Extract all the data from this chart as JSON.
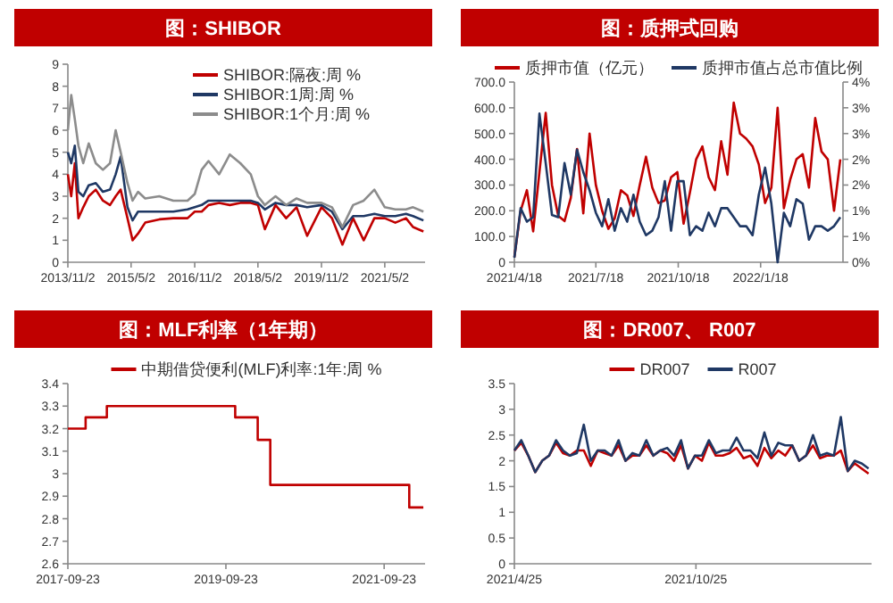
{
  "chart_data": [
    {
      "type": "line",
      "title": "图：SHIBOR",
      "legend": "top",
      "xlim": [
        "2013-11-02",
        "2022-04-15"
      ],
      "ylim": [
        0,
        9
      ],
      "yticks": [
        0,
        1,
        2,
        3,
        4,
        5,
        6,
        7,
        8,
        9
      ],
      "xticks": [
        {
          "value": "2013-11-02",
          "label": "2013/11/2"
        },
        {
          "value": "2015-05-02",
          "label": "2015/5/2"
        },
        {
          "value": "2016-11-02",
          "label": "2016/11/2"
        },
        {
          "value": "2018-05-02",
          "label": "2018/5/2"
        },
        {
          "value": "2019-11-02",
          "label": "2019/11/2"
        },
        {
          "value": "2021-05-02",
          "label": "2021/5/2"
        }
      ],
      "x": [
        "2013-11-02",
        "2013-12-01",
        "2014-01-01",
        "2014-02-01",
        "2014-03-15",
        "2014-05-01",
        "2014-07-01",
        "2014-09-01",
        "2014-11-01",
        "2014-12-20",
        "2015-02-01",
        "2015-04-01",
        "2015-05-15",
        "2015-07-01",
        "2015-09-01",
        "2016-01-01",
        "2016-05-01",
        "2016-09-01",
        "2016-11-02",
        "2017-01-01",
        "2017-03-01",
        "2017-06-01",
        "2017-09-01",
        "2017-12-01",
        "2018-03-01",
        "2018-05-02",
        "2018-07-01",
        "2018-10-01",
        "2019-01-01",
        "2019-04-01",
        "2019-07-01",
        "2019-11-02",
        "2020-02-01",
        "2020-05-01",
        "2020-08-01",
        "2020-11-01",
        "2021-02-01",
        "2021-05-02",
        "2021-08-01",
        "2021-11-01",
        "2022-01-01",
        "2022-04-01"
      ],
      "series": [
        {
          "name": "SHIBOR:隔夜:周  %",
          "color": "#c00000",
          "values": [
            4.0,
            3.0,
            4.5,
            2.0,
            2.5,
            3.0,
            3.3,
            2.8,
            2.6,
            3.0,
            3.3,
            2.0,
            1.0,
            1.3,
            1.8,
            1.95,
            2.0,
            2.0,
            2.3,
            2.3,
            2.6,
            2.7,
            2.6,
            2.7,
            2.7,
            2.6,
            1.5,
            2.6,
            2.0,
            2.5,
            1.2,
            2.5,
            2.0,
            0.8,
            2.0,
            1.0,
            2.0,
            2.0,
            1.8,
            2.0,
            1.6,
            1.4
          ]
        },
        {
          "name": "SHIBOR:1周:周  %",
          "color": "#1f3864",
          "values": [
            5.0,
            4.5,
            5.3,
            3.2,
            3.0,
            3.5,
            3.6,
            3.2,
            3.3,
            4.0,
            4.8,
            2.5,
            1.9,
            2.3,
            2.3,
            2.3,
            2.3,
            2.4,
            2.5,
            2.6,
            2.8,
            2.8,
            2.8,
            2.8,
            2.8,
            2.7,
            2.4,
            2.7,
            2.6,
            2.6,
            2.5,
            2.6,
            2.3,
            1.5,
            2.1,
            2.1,
            2.2,
            2.1,
            2.1,
            2.2,
            2.1,
            1.9
          ]
        },
        {
          "name": "SHIBOR:1个月:周  %",
          "color": "#8c8c8c",
          "values": [
            6.0,
            7.6,
            6.5,
            5.3,
            4.5,
            5.4,
            4.5,
            4.2,
            4.5,
            6.0,
            5.0,
            3.6,
            2.8,
            3.2,
            2.9,
            3.0,
            2.8,
            2.8,
            3.1,
            4.2,
            4.6,
            4.0,
            4.9,
            4.5,
            4.0,
            3.0,
            2.6,
            3.0,
            2.6,
            2.9,
            2.7,
            2.7,
            2.5,
            1.6,
            2.6,
            2.8,
            3.3,
            2.5,
            2.4,
            2.4,
            2.5,
            2.3
          ]
        }
      ]
    },
    {
      "type": "line",
      "title": "图：质押式回购",
      "legend": "top",
      "xlim": [
        "2021-04-18",
        "2022-04-20"
      ],
      "ylim": [
        0,
        700
      ],
      "y2lim": [
        0,
        4
      ],
      "yticks": [
        0,
        {
          "value": 100,
          "label": "100.0"
        },
        {
          "value": 200,
          "label": "200.0"
        },
        {
          "value": 300,
          "label": "300.0"
        },
        {
          "value": 400,
          "label": "400.0"
        },
        {
          "value": 500,
          "label": "500.0"
        },
        {
          "value": 600,
          "label": "600.0"
        },
        {
          "value": 700,
          "label": "700.0"
        }
      ],
      "y2ticks": [
        {
          "value": 0,
          "label": "0%"
        },
        {
          "value": 0.571,
          "label": "1%"
        },
        {
          "value": 1.143,
          "label": "1%"
        },
        {
          "value": 1.714,
          "label": "2%"
        },
        {
          "value": 2.286,
          "label": "2%"
        },
        {
          "value": 2.857,
          "label": "3%"
        },
        {
          "value": 3.429,
          "label": "3%"
        },
        {
          "value": 4,
          "label": "4%"
        }
      ],
      "xticks": [
        {
          "value": "2021-04-18",
          "label": "2021/4/18"
        },
        {
          "value": "2021-07-18",
          "label": "2021/7/18"
        },
        {
          "value": "2021-10-18",
          "label": "2021/10/18"
        },
        {
          "value": "2022-01-18",
          "label": "2022/1/18"
        }
      ],
      "x": [
        "2021-04-18",
        "2021-04-25",
        "2021-05-02",
        "2021-05-09",
        "2021-05-16",
        "2021-05-23",
        "2021-05-30",
        "2021-06-06",
        "2021-06-13",
        "2021-06-20",
        "2021-06-27",
        "2021-07-04",
        "2021-07-11",
        "2021-07-18",
        "2021-07-25",
        "2021-08-01",
        "2021-08-08",
        "2021-08-15",
        "2021-08-22",
        "2021-08-29",
        "2021-09-05",
        "2021-09-12",
        "2021-09-19",
        "2021-09-26",
        "2021-10-03",
        "2021-10-10",
        "2021-10-17",
        "2021-10-24",
        "2021-10-31",
        "2021-11-07",
        "2021-11-14",
        "2021-11-21",
        "2021-11-28",
        "2021-12-05",
        "2021-12-12",
        "2021-12-19",
        "2021-12-26",
        "2022-01-02",
        "2022-01-09",
        "2022-01-16",
        "2022-01-23",
        "2022-01-30",
        "2022-02-06",
        "2022-02-13",
        "2022-02-20",
        "2022-02-27",
        "2022-03-06",
        "2022-03-13",
        "2022-03-20",
        "2022-03-27",
        "2022-04-03",
        "2022-04-10",
        "2022-04-17"
      ],
      "series": [
        {
          "name": "质押市值（亿元）",
          "color": "#c00000",
          "values": [
            20,
            200,
            280,
            120,
            350,
            580,
            300,
            180,
            160,
            250,
            440,
            190,
            500,
            300,
            200,
            130,
            170,
            280,
            260,
            180,
            300,
            410,
            290,
            230,
            240,
            330,
            350,
            150,
            270,
            400,
            450,
            330,
            280,
            470,
            340,
            620,
            500,
            480,
            450,
            380,
            230,
            290,
            600,
            210,
            320,
            400,
            420,
            290,
            560,
            430,
            400,
            200,
            400
          ]
        },
        {
          "name": "质押市值占总市值比例",
          "color": "#1f3864",
          "axis": "y2",
          "values": [
            0.1,
            1.2,
            0.9,
            1.0,
            3.3,
            2.2,
            1.05,
            1.0,
            2.2,
            1.5,
            2.5,
            2.0,
            1.6,
            1.1,
            0.8,
            1.4,
            0.7,
            1.2,
            0.9,
            1.5,
            0.9,
            0.6,
            0.7,
            1.0,
            1.8,
            0.7,
            1.8,
            1.8,
            0.6,
            0.8,
            0.7,
            1.1,
            0.8,
            1.2,
            1.2,
            1.0,
            0.8,
            0.8,
            0.6,
            1.5,
            2.1,
            1.3,
            0.0,
            1.1,
            0.8,
            1.4,
            1.3,
            0.5,
            0.8,
            0.8,
            0.7,
            0.8,
            1.0
          ]
        }
      ]
    },
    {
      "type": "step",
      "title": "图：MLF利率（1年期）",
      "legend": "top",
      "xlim": [
        "2017-09-23",
        "2022-03-31"
      ],
      "ylim": [
        2.6,
        3.4
      ],
      "yticks": [
        2.6,
        2.7,
        2.8,
        2.9,
        3,
        3.1,
        3.2,
        3.3,
        3.4
      ],
      "xticks": [
        {
          "value": "2017-09-23",
          "label": "2017-09-23"
        },
        {
          "value": "2019-09-23",
          "label": "2019-09-23"
        },
        {
          "value": "2021-09-23",
          "label": "2021-09-23"
        }
      ],
      "x": [
        "2017-09-23",
        "2017-12-14",
        "2018-03-22",
        "2019-11-05",
        "2020-02-17",
        "2020-04-15",
        "2022-01-17",
        "2022-03-23"
      ],
      "series": [
        {
          "name": "中期借贷便利(MLF)利率:1年:周  %",
          "color": "#c00000",
          "values": [
            3.2,
            3.25,
            3.3,
            3.25,
            3.15,
            2.95,
            2.85,
            2.85
          ]
        }
      ]
    },
    {
      "type": "line",
      "title": "图：DR007、 R007",
      "legend": "top",
      "xlim": [
        "2021-04-25",
        "2022-04-20"
      ],
      "ylim": [
        0,
        3.5
      ],
      "yticks": [
        0,
        0.5,
        1,
        1.5,
        2,
        2.5,
        3,
        3.5
      ],
      "xticks": [
        {
          "value": "2021-04-25",
          "label": "2021/4/25"
        },
        {
          "value": "2021-10-25",
          "label": "2021/10/25"
        }
      ],
      "x": [
        "2021-04-25",
        "2021-05-02",
        "2021-05-09",
        "2021-05-16",
        "2021-05-23",
        "2021-05-30",
        "2021-06-06",
        "2021-06-13",
        "2021-06-20",
        "2021-06-27",
        "2021-07-04",
        "2021-07-11",
        "2021-07-18",
        "2021-07-25",
        "2021-08-01",
        "2021-08-08",
        "2021-08-15",
        "2021-08-22",
        "2021-08-29",
        "2021-09-05",
        "2021-09-12",
        "2021-09-19",
        "2021-09-26",
        "2021-10-03",
        "2021-10-10",
        "2021-10-17",
        "2021-10-24",
        "2021-10-31",
        "2021-11-07",
        "2021-11-14",
        "2021-11-21",
        "2021-11-28",
        "2021-12-05",
        "2021-12-12",
        "2021-12-19",
        "2021-12-26",
        "2022-01-02",
        "2022-01-09",
        "2022-01-16",
        "2022-01-23",
        "2022-01-30",
        "2022-02-06",
        "2022-02-13",
        "2022-02-20",
        "2022-02-27",
        "2022-03-06",
        "2022-03-13",
        "2022-03-20",
        "2022-03-27",
        "2022-04-03",
        "2022-04-10",
        "2022-04-17"
      ],
      "series": [
        {
          "name": "DR007",
          "color": "#c00000",
          "values": [
            2.2,
            2.35,
            2.1,
            1.78,
            2.0,
            2.1,
            2.35,
            2.15,
            2.1,
            2.2,
            2.2,
            1.9,
            2.2,
            2.15,
            2.1,
            2.3,
            2.0,
            2.1,
            2.1,
            2.3,
            2.1,
            2.2,
            2.15,
            2.0,
            2.3,
            1.85,
            2.1,
            2.0,
            2.35,
            2.1,
            2.1,
            2.15,
            2.25,
            2.05,
            2.1,
            1.9,
            2.25,
            2.05,
            2.2,
            2.1,
            2.3,
            2.0,
            2.1,
            2.3,
            2.05,
            2.1,
            2.1,
            2.2,
            1.8,
            1.95,
            1.85,
            1.75
          ]
        },
        {
          "name": "R007",
          "color": "#1f3864",
          "values": [
            2.2,
            2.4,
            2.1,
            1.78,
            2.0,
            2.1,
            2.4,
            2.2,
            2.1,
            2.15,
            2.7,
            2.0,
            2.2,
            2.2,
            2.1,
            2.4,
            2.0,
            2.15,
            2.1,
            2.4,
            2.1,
            2.2,
            2.25,
            2.1,
            2.4,
            1.85,
            2.1,
            2.1,
            2.4,
            2.15,
            2.2,
            2.2,
            2.45,
            2.2,
            2.2,
            2.05,
            2.55,
            2.1,
            2.35,
            2.3,
            2.3,
            2.0,
            2.1,
            2.5,
            2.1,
            2.15,
            2.1,
            2.85,
            1.8,
            2.0,
            1.95,
            1.85
          ]
        }
      ]
    }
  ]
}
